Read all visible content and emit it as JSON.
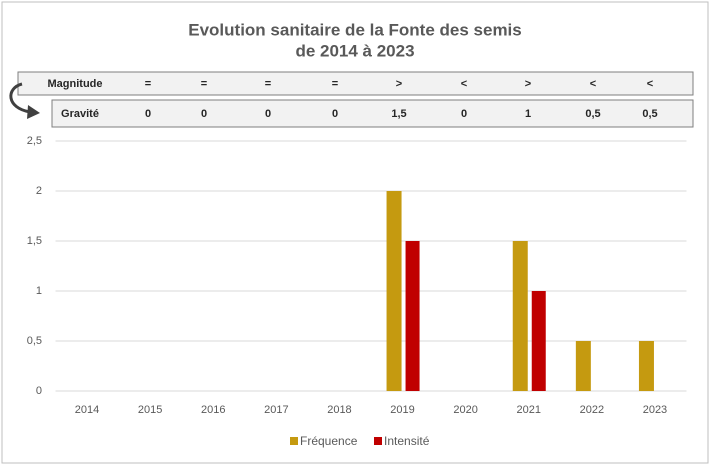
{
  "chart_data": {
    "type": "bar",
    "title": [
      "Evolution sanitaire de la Fonte des semis",
      "de 2014 à 2023"
    ],
    "categories": [
      "2014",
      "2015",
      "2016",
      "2017",
      "2018",
      "2019",
      "2020",
      "2021",
      "2022",
      "2023"
    ],
    "series": [
      {
        "name": "Fréquence",
        "color": "#c59a10",
        "values": [
          0,
          0,
          0,
          0,
          0,
          2,
          0,
          1.5,
          0.5,
          0.5
        ]
      },
      {
        "name": "Intensité",
        "color": "#c00000",
        "values": [
          0,
          0,
          0,
          0,
          0,
          1.5,
          0,
          1,
          0,
          0
        ]
      }
    ],
    "ylim": [
      0,
      2.5
    ],
    "yticks": [
      0,
      {
        "value": 0.5,
        "label": "0,5"
      },
      1,
      {
        "value": 1.5,
        "label": "1,5"
      },
      2,
      {
        "value": 2.5,
        "label": "2,5"
      }
    ],
    "grid": true,
    "legend": "bottom"
  },
  "table": {
    "rows": [
      {
        "label": "Magnitude",
        "cells": [
          "=",
          "=",
          "=",
          "=",
          ">",
          "<",
          ">",
          "<",
          "<"
        ],
        "colors": [
          "#262626",
          "#262626",
          "#262626",
          "#262626",
          "#e00000",
          "#262626",
          "#e00000",
          "#262626",
          "#262626"
        ]
      },
      {
        "label": "Gravité",
        "cells": [
          "0",
          "0",
          "0",
          "0",
          "1,5",
          "0",
          "1",
          "0,5",
          "0,5"
        ],
        "colors": [
          "#262626",
          "#262626",
          "#262626",
          "#262626",
          "#e00000",
          "#3a8a2a",
          "#e00000",
          "#3a8a2a",
          "#3a8a2a"
        ]
      }
    ]
  }
}
